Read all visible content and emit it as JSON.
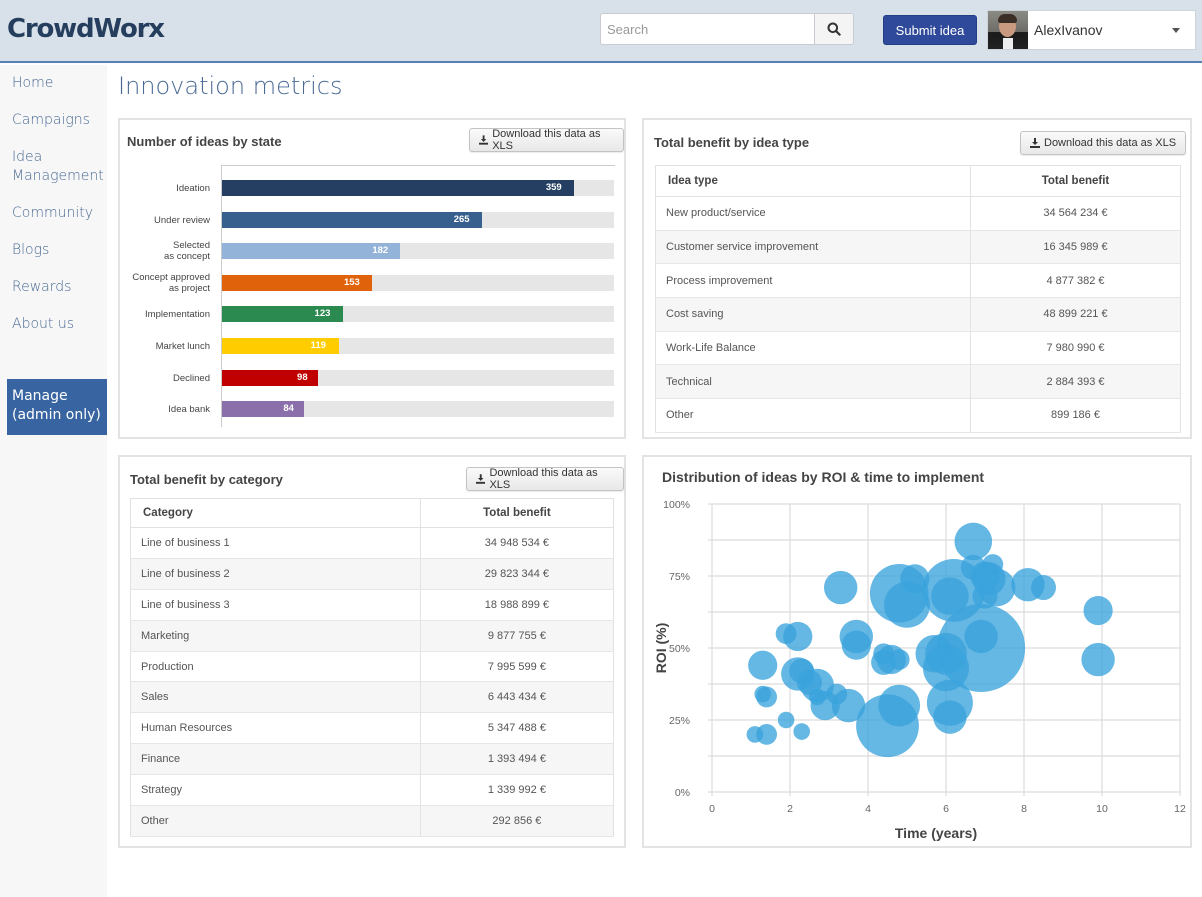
{
  "app": {
    "logo": "CrowdWorx"
  },
  "header": {
    "search_placeholder": "Search",
    "submit_label": "Submit idea",
    "user_name": "AlexIvanov"
  },
  "sidebar": {
    "items": [
      {
        "label": "Home"
      },
      {
        "label": "Campaigns"
      },
      {
        "label": "Idea\nManagement"
      },
      {
        "label": "Community"
      },
      {
        "label": "Blogs"
      },
      {
        "label": "Rewards"
      },
      {
        "label": "About us"
      }
    ],
    "manage_label": "Manage (admin only)"
  },
  "page": {
    "title": "Innovation metrics"
  },
  "download_label": "Download this data as XLS",
  "ideas_by_state": {
    "title": "Number of ideas by state",
    "max": 400,
    "rows": [
      {
        "label": "Ideation",
        "value": 359,
        "color": "#253f62"
      },
      {
        "label": "Under review",
        "value": 265,
        "color": "#37608f"
      },
      {
        "label": "Selected as concept",
        "value": 182,
        "color": "#94b3d8"
      },
      {
        "label": "Concept approved as project",
        "value": 153,
        "color": "#e0620b"
      },
      {
        "label": "Implementation",
        "value": 123,
        "color": "#2a8a4f"
      },
      {
        "label": "Market lunch",
        "value": 119,
        "color": "#ffcc00"
      },
      {
        "label": "Declined",
        "value": 98,
        "color": "#c00000"
      },
      {
        "label": "Idea bank",
        "value": 84,
        "color": "#8a6fab"
      }
    ]
  },
  "benefit_by_type": {
    "title": "Total benefit by idea type",
    "columns": [
      "Idea type",
      "Total benefit"
    ],
    "rows": [
      [
        "New product/service",
        "34 564 234 €"
      ],
      [
        "Customer service improvement",
        "16 345 989 €"
      ],
      [
        "Process improvement",
        "4 877 382 €"
      ],
      [
        "Cost saving",
        "48 899 221 €"
      ],
      [
        "Work-Life Balance",
        "7 980 990 €"
      ],
      [
        "Technical",
        "2 884 393 €"
      ],
      [
        "Other",
        "899 186 €"
      ]
    ]
  },
  "benefit_by_category": {
    "title": "Total benefit by category",
    "columns": [
      "Category",
      "Total benefit"
    ],
    "rows": [
      [
        "Line of business 1",
        "34 948 534 €"
      ],
      [
        "Line of business 2",
        "29 823 344 €"
      ],
      [
        "Line of business 3",
        "18 988 899 €"
      ],
      [
        "Marketing",
        "9 877 755 €"
      ],
      [
        "Production",
        "7 995 599 €"
      ],
      [
        "Sales",
        "6 443 434 €"
      ],
      [
        "Human Resources",
        "5 347 488 €"
      ],
      [
        "Finance",
        "1 393 494 €"
      ],
      [
        "Strategy",
        "1 339 992 €"
      ],
      [
        "Other",
        "292 856 €"
      ]
    ]
  },
  "chart_data": {
    "type": "scatter",
    "title": "Distribution of ideas by ROI & time to implement",
    "xlabel": "Time (years)",
    "ylabel": "ROI (%)",
    "xlim": [
      0,
      12
    ],
    "ylim": [
      0,
      100
    ],
    "xticks": [
      "0",
      "2",
      "4",
      "6",
      "8",
      "10",
      "12"
    ],
    "yticks": [
      "0%",
      "25%",
      "50%",
      "75%",
      "100%"
    ],
    "grid": true,
    "bubble_color": "#3aa3dc",
    "points": [
      {
        "x": 6.7,
        "y": 87,
        "size": 4
      },
      {
        "x": 6.7,
        "y": 78,
        "size": 2.5
      },
      {
        "x": 7.0,
        "y": 75,
        "size": 3
      },
      {
        "x": 7.2,
        "y": 79,
        "size": 2
      },
      {
        "x": 7.1,
        "y": 74,
        "size": 3.5
      },
      {
        "x": 7.3,
        "y": 71,
        "size": 4
      },
      {
        "x": 7.0,
        "y": 68,
        "size": 2.5
      },
      {
        "x": 8.1,
        "y": 72,
        "size": 3.5
      },
      {
        "x": 8.5,
        "y": 71,
        "size": 2.5
      },
      {
        "x": 3.3,
        "y": 71,
        "size": 3.5
      },
      {
        "x": 5.2,
        "y": 74,
        "size": 3
      },
      {
        "x": 4.8,
        "y": 69,
        "size": 6.5
      },
      {
        "x": 5.0,
        "y": 65,
        "size": 5
      },
      {
        "x": 6.2,
        "y": 70,
        "size": 7
      },
      {
        "x": 6.1,
        "y": 68,
        "size": 4
      },
      {
        "x": 9.9,
        "y": 63,
        "size": 3
      },
      {
        "x": 9.9,
        "y": 46,
        "size": 3.5
      },
      {
        "x": 1.9,
        "y": 55,
        "size": 2
      },
      {
        "x": 2.2,
        "y": 54,
        "size": 3
      },
      {
        "x": 3.7,
        "y": 54,
        "size": 3.5
      },
      {
        "x": 3.7,
        "y": 51,
        "size": 3
      },
      {
        "x": 4.4,
        "y": 48,
        "size": 2
      },
      {
        "x": 4.6,
        "y": 46,
        "size": 3
      },
      {
        "x": 4.4,
        "y": 45,
        "size": 2.5
      },
      {
        "x": 4.8,
        "y": 46,
        "size": 2
      },
      {
        "x": 5.7,
        "y": 48,
        "size": 4
      },
      {
        "x": 6.0,
        "y": 48,
        "size": 4.5
      },
      {
        "x": 6.9,
        "y": 50,
        "size": 10
      },
      {
        "x": 6.9,
        "y": 54,
        "size": 3.5
      },
      {
        "x": 6.0,
        "y": 43,
        "size": 5
      },
      {
        "x": 1.3,
        "y": 44,
        "size": 3
      },
      {
        "x": 2.2,
        "y": 41,
        "size": 3.5
      },
      {
        "x": 2.3,
        "y": 42,
        "size": 2.5
      },
      {
        "x": 2.5,
        "y": 38,
        "size": 2.5
      },
      {
        "x": 2.7,
        "y": 37,
        "size": 3.5
      },
      {
        "x": 2.7,
        "y": 33,
        "size": 1.5
      },
      {
        "x": 3.2,
        "y": 34,
        "size": 2
      },
      {
        "x": 2.9,
        "y": 30,
        "size": 3
      },
      {
        "x": 3.5,
        "y": 30,
        "size": 3.5
      },
      {
        "x": 1.3,
        "y": 34,
        "size": 1.5
      },
      {
        "x": 1.4,
        "y": 33,
        "size": 2
      },
      {
        "x": 6.1,
        "y": 31,
        "size": 5
      },
      {
        "x": 6.1,
        "y": 26,
        "size": 3.5
      },
      {
        "x": 4.8,
        "y": 30,
        "size": 4.5
      },
      {
        "x": 4.5,
        "y": 23,
        "size": 7
      },
      {
        "x": 1.9,
        "y": 25,
        "size": 1.5
      },
      {
        "x": 1.1,
        "y": 20,
        "size": 1.5
      },
      {
        "x": 1.4,
        "y": 20,
        "size": 2
      },
      {
        "x": 2.3,
        "y": 21,
        "size": 1.5
      }
    ]
  }
}
